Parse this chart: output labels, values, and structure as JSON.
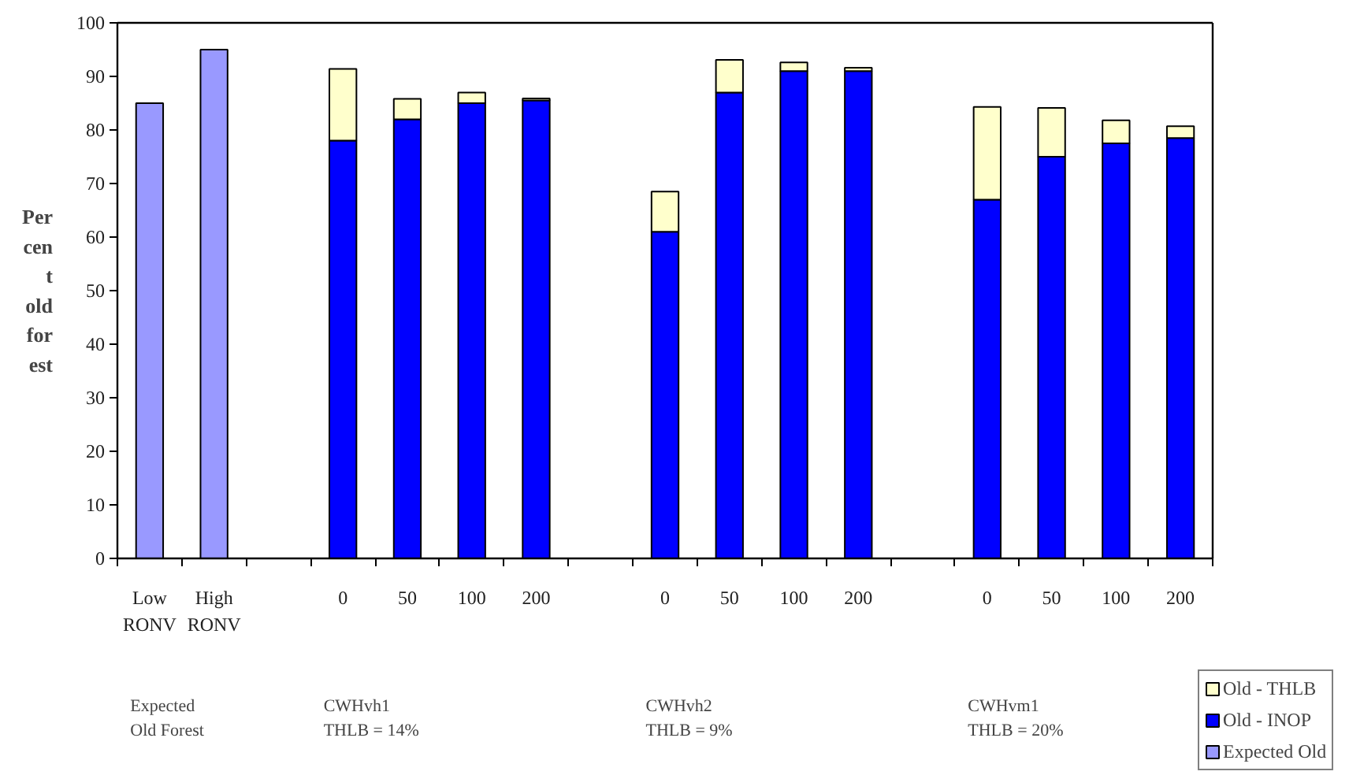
{
  "chart_data": {
    "type": "bar",
    "stacked": true,
    "categories": [
      "Low\nRONV",
      "High\nRONV",
      null,
      "0",
      "50",
      "100",
      "200",
      null,
      "0",
      "50",
      "100",
      "200",
      null,
      "0",
      "50",
      "100",
      "200"
    ],
    "series": [
      {
        "name": "Expected Old",
        "color": "#9999ff",
        "values": [
          85,
          95,
          null,
          null,
          null,
          null,
          null,
          null,
          null,
          null,
          null,
          null,
          null,
          null,
          null,
          null,
          null
        ]
      },
      {
        "name": "Old - INOP",
        "color": "#0000ff",
        "values": [
          null,
          null,
          null,
          78,
          82,
          85,
          85.5,
          null,
          61,
          87,
          91,
          91,
          null,
          67,
          75,
          77.5,
          78.5
        ]
      },
      {
        "name": "Old - THLB",
        "color": "#ffffcc",
        "values": [
          null,
          null,
          null,
          13.4,
          3.8,
          2,
          0.4,
          null,
          7.5,
          6.1,
          1.6,
          0.6,
          null,
          17.3,
          9.1,
          4.3,
          2.2
        ]
      }
    ],
    "ylabel": "Percent old forest",
    "ylim": [
      0,
      100
    ],
    "yticks": [
      0,
      10,
      20,
      30,
      40,
      50,
      60,
      70,
      80,
      90,
      100
    ],
    "annotations": [
      "Expected\nOld Forest",
      "CWHvh1\nTHLB = 14%",
      "CWHvh2\nTHLB = 9%",
      "CWHvm1\nTHLB = 20%"
    ],
    "legend": "bottom right"
  }
}
